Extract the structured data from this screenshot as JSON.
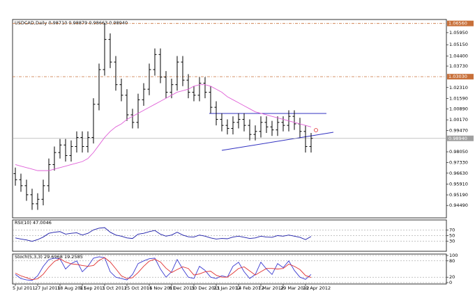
{
  "chart_data": [
    {
      "type": "ohlc",
      "title": "USDCAD,Daily 0.98710 0.98879 0.98663 0.98940",
      "categories": [
        "5 Jul 2011",
        null,
        null,
        null,
        "27 Jul 2011",
        null,
        null,
        null,
        "18 Aug 2011",
        null,
        null,
        null,
        "9 Sep 2011",
        null,
        null,
        null,
        "3 Oct 2011",
        null,
        null,
        null,
        "25 Oct 2011",
        null,
        null,
        null,
        "16 Nov 2011",
        null,
        null,
        null,
        "8 Dec 2011",
        null,
        null,
        null,
        "30 Dec 2011",
        null,
        null,
        null,
        "23 Jan 2012",
        null,
        null,
        null,
        "14 Feb 2012",
        null,
        null,
        null,
        "7 Mar 2012",
        null,
        null,
        null,
        "29 Mar 2012",
        null,
        null,
        null,
        "20 Apr 2012",
        null
      ],
      "open": [
        0.966,
        0.962,
        0.958,
        0.952,
        0.946,
        0.949,
        0.958,
        0.972,
        0.98,
        0.985,
        0.978,
        0.984,
        0.99,
        0.984,
        0.99,
        1.012,
        1.035,
        1.055,
        1.04,
        1.025,
        1.018,
        1.005,
        1.0,
        1.015,
        1.022,
        1.035,
        1.045,
        1.03,
        1.02,
        1.025,
        1.04,
        1.028,
        1.02,
        1.018,
        1.026,
        1.02,
        1.01,
        1.002,
        0.998,
        0.996,
        1.0,
        1.002,
        0.998,
        0.992,
        0.994,
        1.0,
        0.997,
        0.995,
        1.0,
        0.998,
        1.004,
        0.999,
        0.994,
        0.984
      ],
      "high": [
        0.97,
        0.966,
        0.962,
        0.956,
        0.953,
        0.962,
        0.976,
        0.984,
        0.989,
        0.989,
        0.988,
        0.994,
        0.994,
        0.994,
        1.016,
        1.039,
        1.0656,
        1.059,
        1.044,
        1.029,
        1.022,
        1.009,
        1.019,
        1.026,
        1.039,
        1.049,
        1.049,
        1.034,
        1.029,
        1.044,
        1.044,
        1.032,
        1.024,
        1.03,
        1.03,
        1.024,
        1.014,
        1.006,
        1.002,
        1.004,
        1.006,
        1.006,
        1.002,
        0.998,
        1.004,
        1.004,
        1.001,
        1.004,
        1.004,
        1.008,
        1.008,
        1.003,
        0.998,
        0.993
      ],
      "low": [
        0.958,
        0.954,
        0.948,
        0.942,
        0.942,
        0.945,
        0.954,
        0.968,
        0.976,
        0.974,
        0.974,
        0.98,
        0.98,
        0.98,
        0.986,
        1.008,
        1.031,
        1.036,
        1.021,
        1.014,
        1.001,
        0.996,
        0.996,
        1.011,
        1.018,
        1.031,
        1.026,
        1.016,
        1.016,
        1.021,
        1.024,
        1.016,
        1.014,
        1.014,
        1.016,
        1.006,
        0.998,
        0.994,
        0.992,
        0.992,
        0.996,
        0.994,
        0.988,
        0.988,
        0.99,
        0.993,
        0.991,
        0.991,
        0.994,
        0.994,
        0.995,
        0.99,
        0.98,
        0.98
      ],
      "close": [
        0.962,
        0.958,
        0.952,
        0.946,
        0.949,
        0.958,
        0.972,
        0.98,
        0.985,
        0.978,
        0.984,
        0.99,
        0.984,
        0.99,
        1.012,
        1.035,
        1.055,
        1.04,
        1.025,
        1.018,
        1.005,
        1.0,
        1.015,
        1.022,
        1.035,
        1.045,
        1.03,
        1.02,
        1.025,
        1.04,
        1.028,
        1.02,
        1.018,
        1.026,
        1.02,
        1.01,
        1.002,
        0.998,
        0.996,
        1.0,
        1.002,
        0.998,
        0.992,
        0.994,
        1.0,
        0.997,
        0.995,
        1.0,
        0.998,
        1.004,
        0.999,
        0.994,
        0.984,
        0.9894
      ],
      "color": "#000000",
      "ma": {
        "color": "#e060d8",
        "values": [
          0.972,
          0.971,
          0.97,
          0.969,
          0.968,
          0.968,
          0.968,
          0.969,
          0.97,
          0.971,
          0.972,
          0.973,
          0.974,
          0.976,
          0.98,
          0.985,
          0.99,
          0.994,
          0.997,
          0.999,
          1.002,
          1.004,
          1.006,
          1.008,
          1.01,
          1.012,
          1.014,
          1.016,
          1.018,
          1.02,
          1.021,
          1.022,
          1.024,
          1.025,
          1.025,
          1.024,
          1.022,
          1.02,
          1.017,
          1.015,
          1.013,
          1.011,
          1.009,
          1.007,
          1.006,
          1.005,
          1.004,
          1.003,
          1.002,
          1.001,
          1.0,
          0.999,
          0.998,
          0.997
        ]
      },
      "ylim": [
        0.9376,
        1.0673
      ],
      "yticks": [
        {
          "value": 1.0595,
          "label": "1.05950"
        },
        {
          "value": 1.0515,
          "label": "1.05150"
        },
        {
          "value": 1.044,
          "label": "1.04400"
        },
        {
          "value": 1.0373,
          "label": "1.03730"
        },
        {
          "value": 1.0231,
          "label": "1.02310"
        },
        {
          "value": 1.0159,
          "label": "1.01590"
        },
        {
          "value": 1.0089,
          "label": "1.00890"
        },
        {
          "value": 1.0017,
          "label": "1.00170"
        },
        {
          "value": 0.9947,
          "label": "0.99470"
        },
        {
          "value": 0.9805,
          "label": "0.98050"
        },
        {
          "value": 0.9733,
          "label": "0.97330"
        },
        {
          "value": 0.9663,
          "label": "0.96630"
        },
        {
          "value": 0.9591,
          "label": "0.95910"
        },
        {
          "value": 0.9519,
          "label": "0.95190"
        },
        {
          "value": 0.9449,
          "label": "0.94490"
        }
      ],
      "levels": [
        {
          "value": 1.0656,
          "label": "1.06560",
          "color": "#c8703a"
        },
        {
          "value": 1.0303,
          "label": "1.03030",
          "color": "#c8703a"
        }
      ],
      "current": {
        "value": 0.9894,
        "label": "0.98940",
        "color": "#a0a0a0"
      }
    },
    {
      "type": "line",
      "title": "RSI(10) 47.0046",
      "color": "#1a1aa8",
      "values": [
        42,
        38,
        35,
        30,
        36,
        45,
        58,
        62,
        64,
        55,
        58,
        60,
        52,
        58,
        70,
        76,
        78,
        62,
        52,
        48,
        42,
        40,
        55,
        58,
        64,
        68,
        55,
        48,
        52,
        62,
        52,
        46,
        45,
        52,
        48,
        42,
        38,
        40,
        39,
        45,
        48,
        44,
        40,
        42,
        48,
        45,
        44,
        50,
        48,
        52,
        48,
        44,
        36,
        47
      ],
      "ylim": [
        0,
        100
      ],
      "yticks": [
        30,
        50,
        70
      ]
    },
    {
      "type": "line",
      "title": "Stoch(5,3,3) 29.6968 19.2585",
      "series": [
        {
          "color": "#3a3ad0",
          "values": [
            30,
            15,
            10,
            8,
            25,
            60,
            85,
            90,
            88,
            50,
            70,
            80,
            40,
            60,
            90,
            95,
            92,
            40,
            20,
            15,
            10,
            30,
            70,
            80,
            88,
            90,
            50,
            20,
            40,
            85,
            50,
            20,
            15,
            60,
            45,
            20,
            15,
            25,
            20,
            60,
            75,
            40,
            15,
            30,
            75,
            50,
            30,
            70,
            55,
            80,
            45,
            20,
            12,
            30
          ]
        },
        {
          "color": "#e03030",
          "values": [
            35,
            25,
            18,
            11,
            14,
            31,
            57,
            78,
            88,
            76,
            69,
            67,
            63,
            60,
            63,
            82,
            92,
            76,
            51,
            25,
            15,
            18,
            37,
            60,
            79,
            86,
            76,
            53,
            37,
            48,
            58,
            52,
            28,
            32,
            40,
            42,
            27,
            20,
            20,
            35,
            52,
            58,
            43,
            28,
            40,
            52,
            52,
            50,
            52,
            68,
            60,
            48,
            26,
            19
          ]
        }
      ],
      "ylim": [
        0,
        100
      ],
      "yticks": [
        0,
        20,
        80,
        100
      ]
    }
  ]
}
